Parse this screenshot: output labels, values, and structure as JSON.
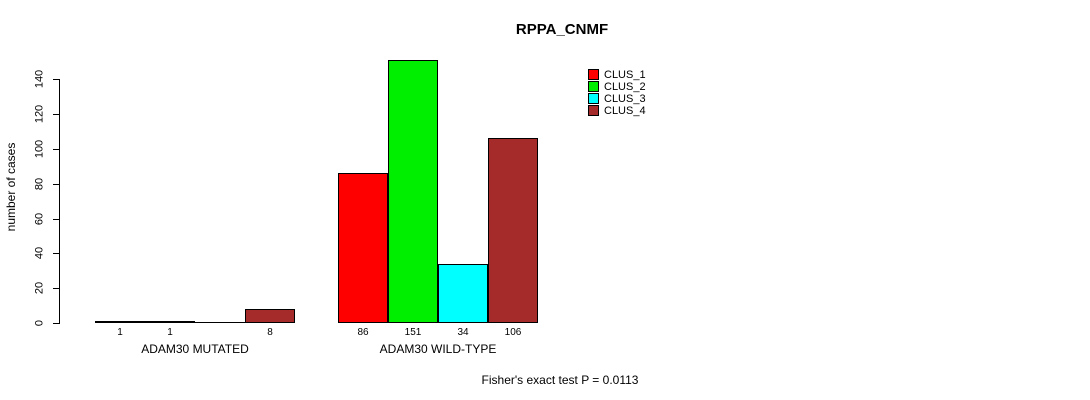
{
  "chart_data": {
    "type": "bar",
    "title": "RPPA_CNMF",
    "ylabel": "number of cases",
    "xlabel": "",
    "note": "Fisher's exact test P = 0.0113",
    "ylim": [
      0,
      140
    ],
    "yticks": [
      0,
      20,
      40,
      60,
      80,
      100,
      120,
      140
    ],
    "grid": false,
    "legend_position": "top-right",
    "categories": [
      "ADAM30 MUTATED",
      "ADAM30 WILD-TYPE"
    ],
    "series": [
      {
        "name": "CLUS_1",
        "color": "#ff0000",
        "values": [
          1,
          86
        ]
      },
      {
        "name": "CLUS_2",
        "color": "#00ee00",
        "values": [
          1,
          151
        ]
      },
      {
        "name": "CLUS_3",
        "color": "#00ffff",
        "values": [
          0,
          34
        ]
      },
      {
        "name": "CLUS_4",
        "color": "#a52a2a",
        "values": [
          8,
          106
        ]
      }
    ],
    "bar_value_labels_shown": true,
    "zero_value_label_hidden": true
  }
}
